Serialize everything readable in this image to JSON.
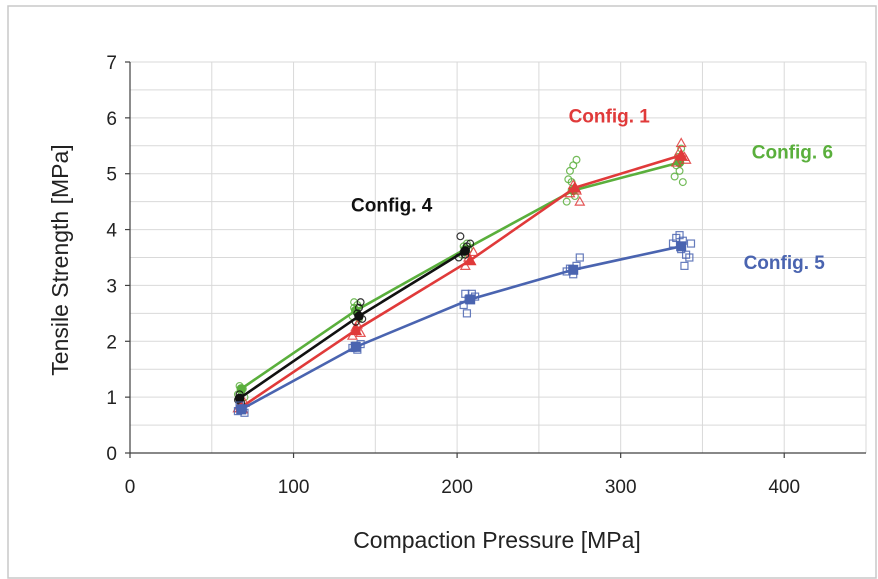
{
  "chart_data": {
    "type": "scatter",
    "title": "",
    "xlabel": "Compaction Pressure [MPa]",
    "ylabel": "Tensile Strength [MPa]",
    "xlim": [
      0,
      450
    ],
    "ylim": [
      0,
      7
    ],
    "xticks": [
      0,
      100,
      200,
      300,
      400
    ],
    "yticks": [
      0,
      1,
      2,
      3,
      4,
      5,
      6,
      7
    ],
    "grid": true,
    "x_minor_step": 50,
    "y_minor_step": 0.5,
    "series": [
      {
        "name": "Config. 6",
        "color": "#5aaf3c",
        "marker": "circle",
        "line": [
          [
            68,
            1.15
          ],
          [
            138,
            2.55
          ],
          [
            205,
            3.65
          ],
          [
            271,
            4.7
          ],
          [
            336,
            5.2
          ]
        ],
        "points": [
          [
            66,
            1.05
          ],
          [
            67,
            1.2
          ],
          [
            68,
            1.1
          ],
          [
            69,
            1.15
          ],
          [
            70,
            1.0
          ],
          [
            67,
            0.95
          ],
          [
            136,
            2.45
          ],
          [
            137,
            2.6
          ],
          [
            138,
            2.55
          ],
          [
            139,
            2.65
          ],
          [
            140,
            2.4
          ],
          [
            137,
            2.7
          ],
          [
            203,
            3.55
          ],
          [
            204,
            3.7
          ],
          [
            205,
            3.6
          ],
          [
            206,
            3.75
          ],
          [
            207,
            3.65
          ],
          [
            267,
            4.5
          ],
          [
            268,
            4.9
          ],
          [
            269,
            5.05
          ],
          [
            270,
            4.7
          ],
          [
            271,
            5.15
          ],
          [
            272,
            4.6
          ],
          [
            273,
            5.25
          ],
          [
            270,
            4.85
          ],
          [
            333,
            4.95
          ],
          [
            334,
            5.15
          ],
          [
            335,
            5.3
          ],
          [
            336,
            5.05
          ],
          [
            337,
            5.45
          ],
          [
            338,
            4.85
          ],
          [
            336,
            5.2
          ]
        ]
      },
      {
        "name": "Config. 1",
        "color": "#e03a3a",
        "marker": "triangle",
        "line": [
          [
            68,
            0.82
          ],
          [
            138,
            2.2
          ],
          [
            208,
            3.45
          ],
          [
            272,
            4.75
          ],
          [
            337,
            5.33
          ]
        ],
        "points": [
          [
            66,
            0.8
          ],
          [
            68,
            0.85
          ],
          [
            69,
            0.78
          ],
          [
            70,
            0.9
          ],
          [
            136,
            2.1
          ],
          [
            138,
            2.25
          ],
          [
            139,
            2.3
          ],
          [
            141,
            2.15
          ],
          [
            205,
            3.35
          ],
          [
            207,
            3.5
          ],
          [
            208,
            3.45
          ],
          [
            210,
            3.6
          ],
          [
            269,
            4.65
          ],
          [
            271,
            4.8
          ],
          [
            273,
            4.7
          ],
          [
            275,
            4.5
          ],
          [
            334,
            5.2
          ],
          [
            336,
            5.4
          ],
          [
            337,
            5.55
          ],
          [
            339,
            5.3
          ],
          [
            340,
            5.25
          ]
        ]
      },
      {
        "name": "Config. 4",
        "color": "#111111",
        "marker": "circle",
        "line": [
          [
            67,
            0.98
          ],
          [
            140,
            2.45
          ],
          [
            205,
            3.62
          ]
        ],
        "points": [
          [
            66,
            0.95
          ],
          [
            67,
            1.05
          ],
          [
            68,
            0.9
          ],
          [
            138,
            2.35
          ],
          [
            139,
            2.5
          ],
          [
            140,
            2.6
          ],
          [
            141,
            2.7
          ],
          [
            142,
            2.4
          ],
          [
            201,
            3.5
          ],
          [
            202,
            3.88
          ],
          [
            204,
            3.6
          ],
          [
            206,
            3.7
          ],
          [
            208,
            3.75
          ],
          [
            205,
            3.55
          ]
        ]
      },
      {
        "name": "Config. 5",
        "color": "#4a64b0",
        "marker": "square",
        "line": [
          [
            68,
            0.78
          ],
          [
            138,
            1.9
          ],
          [
            208,
            2.75
          ],
          [
            271,
            3.28
          ],
          [
            337,
            3.7
          ]
        ],
        "points": [
          [
            66,
            0.75
          ],
          [
            67,
            0.85
          ],
          [
            68,
            0.78
          ],
          [
            69,
            0.8
          ],
          [
            70,
            0.72
          ],
          [
            136,
            1.88
          ],
          [
            138,
            1.92
          ],
          [
            139,
            1.85
          ],
          [
            141,
            1.95
          ],
          [
            204,
            2.65
          ],
          [
            205,
            2.85
          ],
          [
            206,
            2.5
          ],
          [
            207,
            2.75
          ],
          [
            209,
            2.85
          ],
          [
            211,
            2.8
          ],
          [
            267,
            3.25
          ],
          [
            269,
            3.3
          ],
          [
            271,
            3.2
          ],
          [
            273,
            3.35
          ],
          [
            275,
            3.5
          ],
          [
            332,
            3.75
          ],
          [
            334,
            3.85
          ],
          [
            336,
            3.9
          ],
          [
            337,
            3.65
          ],
          [
            338,
            3.8
          ],
          [
            339,
            3.35
          ],
          [
            340,
            3.55
          ],
          [
            342,
            3.5
          ],
          [
            343,
            3.75
          ]
        ]
      }
    ],
    "annotations": [
      {
        "text": "Config. 1",
        "x": 293,
        "y": 6.04,
        "color": "#e03a3a"
      },
      {
        "text": "Config. 6",
        "x": 405,
        "y": 5.4,
        "color": "#5aaf3c"
      },
      {
        "text": "Config. 4",
        "x": 160,
        "y": 4.45,
        "color": "#111111"
      },
      {
        "text": "Config. 5",
        "x": 400,
        "y": 3.42,
        "color": "#4a64b0"
      }
    ]
  }
}
